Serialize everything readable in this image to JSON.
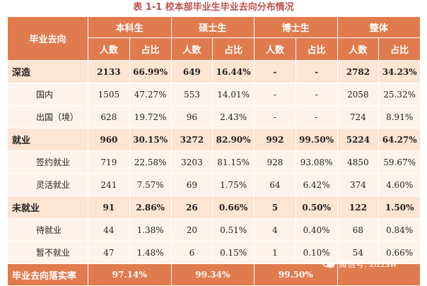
{
  "title": "表 1-1 校本部毕业生毕业去向分布情况",
  "header": {
    "corner": "毕业去向",
    "groups": [
      "本科生",
      "硕士生",
      "博士生",
      "整体"
    ],
    "sub": [
      "人数",
      "占比"
    ]
  },
  "rows": [
    {
      "label": "深造",
      "type": "cat",
      "cells": [
        "2133",
        "66.99%",
        "649",
        "16.44%",
        "-",
        "-",
        "2782",
        "34.23%"
      ]
    },
    {
      "label": "国内",
      "type": "sub",
      "cells": [
        "1505",
        "47.27%",
        "553",
        "14.01%",
        "-",
        "-",
        "2058",
        "25.32%"
      ]
    },
    {
      "label": "出国（境）",
      "type": "sub",
      "cells": [
        "628",
        "19.72%",
        "96",
        "2.43%",
        "-",
        "-",
        "724",
        "8.91%"
      ]
    },
    {
      "label": "就业",
      "type": "cat",
      "cells": [
        "960",
        "30.15%",
        "3272",
        "82.90%",
        "992",
        "99.50%",
        "5224",
        "64.27%"
      ]
    },
    {
      "label": "签约就业",
      "type": "sub",
      "cells": [
        "719",
        "22.58%",
        "3203",
        "81.15%",
        "928",
        "93.08%",
        "4850",
        "59.67%"
      ]
    },
    {
      "label": "灵活就业",
      "type": "sub",
      "cells": [
        "241",
        "7.57%",
        "69",
        "1.75%",
        "64",
        "6.42%",
        "374",
        "4.60%"
      ]
    },
    {
      "label": "未就业",
      "type": "cat",
      "cells": [
        "91",
        "2.86%",
        "26",
        "0.66%",
        "5",
        "0.50%",
        "122",
        "1.50%"
      ]
    },
    {
      "label": "待就业",
      "type": "sub",
      "cells": [
        "44",
        "1.38%",
        "20",
        "0.51%",
        "4",
        "0.40%",
        "68",
        "0.84%"
      ]
    },
    {
      "label": "暂不就业",
      "type": "sub",
      "cells": [
        "47",
        "1.48%",
        "6",
        "0.15%",
        "1",
        "0.10%",
        "54",
        "0.66%"
      ]
    }
  ],
  "footer": {
    "label": "毕业去向落实率",
    "values": [
      "97.14%",
      "99.34%",
      "99.50%",
      ""
    ]
  },
  "watermark": {
    "text": "微信号: zizzsw",
    "icon": "wechat-icon"
  }
}
